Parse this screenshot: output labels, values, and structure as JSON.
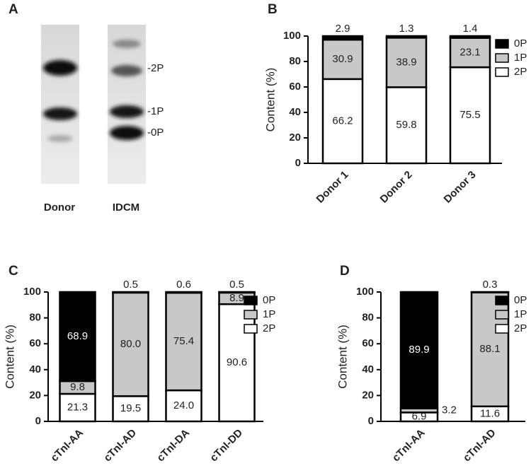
{
  "blot": {
    "panel": "A",
    "lanes": [
      "Donor",
      "IDCM"
    ],
    "bands": [
      "-2P",
      "-1P",
      "-0P"
    ]
  },
  "chart_data": [
    {
      "type": "stacked-bar",
      "panel": "B",
      "y_label": "Content (%)",
      "categories": [
        "Donor 1",
        "Donor 2",
        "Donor 3"
      ],
      "series": [
        {
          "name": "2P",
          "color": "#ffffff",
          "values": [
            66.2,
            59.8,
            75.5
          ]
        },
        {
          "name": "1P",
          "color": "#c8c8c8",
          "values": [
            30.9,
            38.9,
            23.1
          ]
        },
        {
          "name": "0P",
          "color": "#000000",
          "values": [
            2.9,
            1.3,
            1.4
          ]
        }
      ],
      "ylim": [
        0,
        100
      ],
      "yticks": [
        0,
        20,
        40,
        60,
        80,
        100
      ],
      "legend": "right"
    },
    {
      "type": "stacked-bar",
      "panel": "C",
      "y_label": "Content (%)",
      "categories": [
        "cTnI-AA",
        "cTnI-AD",
        "cTnI-DA",
        "cTnI-DD"
      ],
      "series": [
        {
          "name": "2P",
          "color": "#ffffff",
          "values": [
            21.3,
            19.5,
            24.0,
            90.6
          ],
          "value_labels": [
            "21.3",
            "19.5",
            "24.0",
            "90.6"
          ]
        },
        {
          "name": "1P",
          "color": "#c8c8c8",
          "values": [
            9.8,
            80.0,
            75.4,
            8.9
          ],
          "value_labels": [
            "9.8",
            "80.0",
            "75.4",
            "8.9"
          ]
        },
        {
          "name": "0P",
          "color": "#000000",
          "values": [
            68.9,
            0.5,
            0.6,
            0.5
          ],
          "value_labels": [
            "68.9",
            "0.5",
            "0.6",
            "0.5"
          ]
        }
      ],
      "ylim": [
        0,
        100
      ],
      "yticks": [
        0,
        20,
        40,
        60,
        80,
        100
      ],
      "legend": "right"
    },
    {
      "type": "stacked-bar",
      "panel": "D",
      "y_label": "Content (%)",
      "categories": [
        "cTnI-AA",
        "cTnI-AD"
      ],
      "series": [
        {
          "name": "2P",
          "color": "#ffffff",
          "values": [
            6.9,
            11.6
          ]
        },
        {
          "name": "1P",
          "color": "#c8c8c8",
          "values": [
            3.2,
            88.1
          ]
        },
        {
          "name": "0P",
          "color": "#000000",
          "values": [
            89.9,
            0.3
          ]
        }
      ],
      "ylim": [
        0,
        100
      ],
      "yticks": [
        0,
        20,
        40,
        60,
        80,
        100
      ],
      "legend": "right"
    }
  ]
}
